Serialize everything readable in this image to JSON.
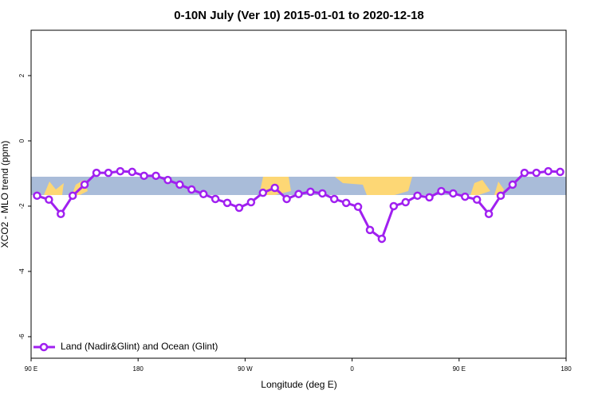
{
  "chart_data": {
    "type": "line",
    "title": "0-10N July (Ver 10)   2015-01-01 to 2020-12-18",
    "x_label": "Longitude (deg E)",
    "y_label": "XCO2 - MLO trend (ppm)",
    "x": [
      95,
      105,
      115,
      125,
      135,
      145,
      155,
      165,
      175,
      185,
      195,
      205,
      215,
      225,
      235,
      245,
      255,
      265,
      275,
      285,
      295,
      305,
      315,
      325,
      335,
      345,
      355,
      365,
      375,
      385,
      395,
      405,
      415,
      425,
      435,
      445,
      455,
      465,
      475,
      485,
      495,
      505,
      515,
      525,
      535
    ],
    "series": [
      {
        "name": "Land (Nadir&Glint) and Ocean (Glint)",
        "color": "#a020f0",
        "values": [
          -1.68,
          -1.8,
          -2.24,
          -1.68,
          -1.34,
          -0.98,
          -0.98,
          -0.93,
          -0.95,
          -1.07,
          -1.07,
          -1.2,
          -1.34,
          -1.49,
          -1.63,
          -1.78,
          -1.9,
          -2.05,
          -1.88,
          -1.59,
          -1.44,
          -1.78,
          -1.63,
          -1.56,
          -1.61,
          -1.78,
          -1.9,
          -2.02,
          -2.73,
          -3.0,
          -2.0,
          -1.88,
          -1.68,
          -1.73,
          -1.54,
          -1.61,
          -1.71,
          -1.8,
          -2.24,
          -1.68,
          -1.34,
          -0.98,
          -0.98,
          -0.93,
          -0.95
        ]
      }
    ],
    "xlim": [
      90,
      540
    ],
    "xticks": [
      {
        "value": 90,
        "label": "90 E"
      },
      180,
      {
        "value": 270,
        "label": "90 W"
      },
      {
        "value": 360,
        "label": "0"
      },
      {
        "value": 450,
        "label": "90 E"
      },
      {
        "value": 540,
        "label": "180"
      }
    ],
    "ylim": [
      -6.66,
      3.39
    ],
    "yticks": [
      2,
      0,
      -2,
      -4,
      -6
    ],
    "legend": "bottom-left"
  }
}
